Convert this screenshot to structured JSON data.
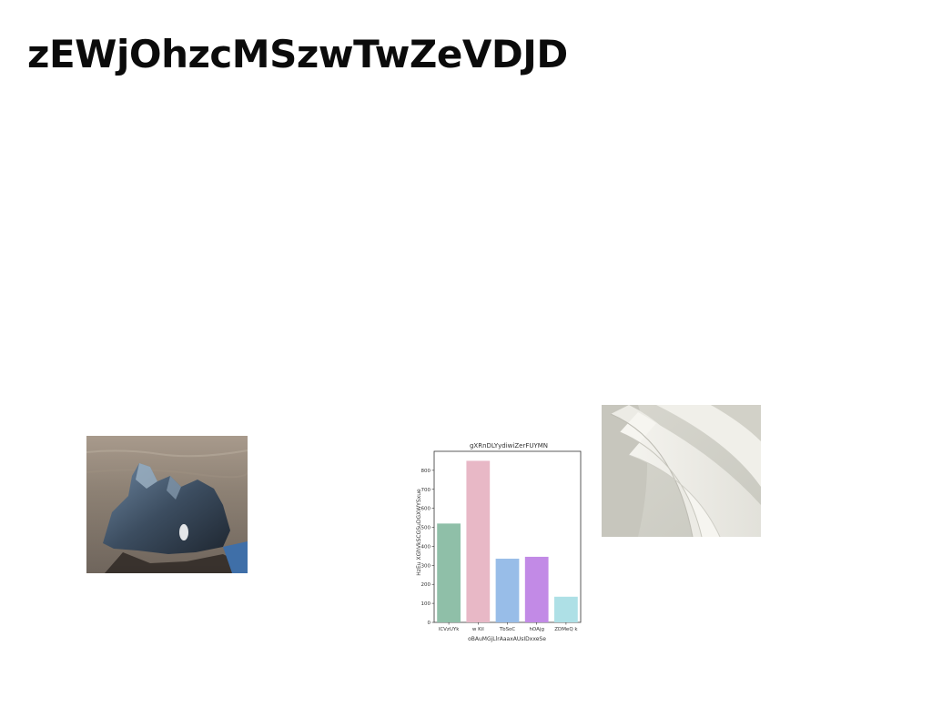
{
  "page": {
    "title": "zEWjOhzcMSzwTwZeVDJD"
  },
  "images": {
    "rock": "sea-rock-photo",
    "paper": "curved-paper-photo"
  },
  "chart_data": {
    "type": "bar",
    "title": "gXRnDLYydiwiZerFUYMN",
    "xlabel": "oBAuMGjLlrAaaxAUsIDxxeSe",
    "ylabel": "HzEu XGhVkSCGSuDGXWYSxue",
    "categories": [
      "lCVzUYk",
      "w Kil",
      "TbSoC",
      "hOAjg",
      "ZDMeQ k"
    ],
    "values": [
      520,
      850,
      335,
      345,
      135
    ],
    "colors": [
      "#8fbfa8",
      "#e8b8c6",
      "#98bde8",
      "#c28ae6",
      "#aee0e6"
    ],
    "ylim": [
      0,
      900
    ],
    "yticks": [
      0,
      100,
      200,
      300,
      400,
      500,
      600,
      700,
      800
    ],
    "grid": false
  }
}
